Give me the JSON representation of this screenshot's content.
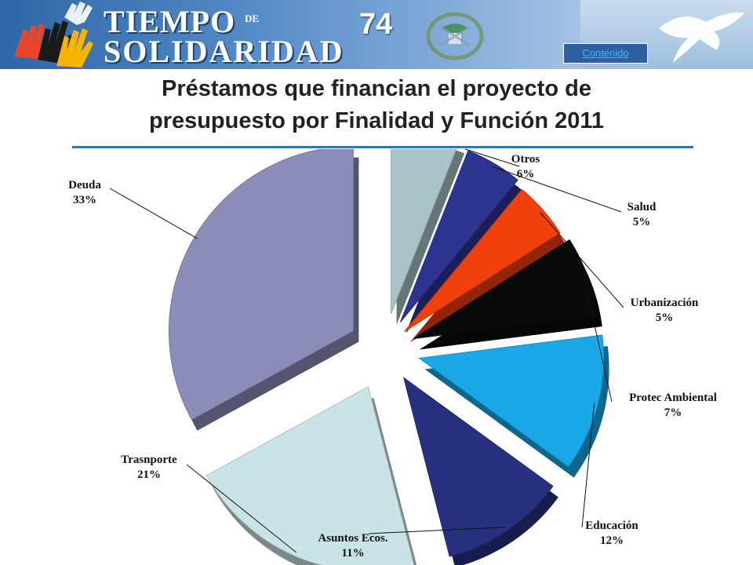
{
  "header": {
    "logo_line1": "TIEMPO",
    "logo_de": "DE",
    "logo_line2": "SOLIDARIDAD",
    "slide_number": "74",
    "nav_link": "Contenido"
  },
  "title": {
    "line1": "Préstamos que financian el proyecto de",
    "line2": "presupuesto por Finalidad y Función 2011"
  },
  "chart_data": {
    "type": "pie",
    "title": "Préstamos que financian el proyecto de presupuesto por Finalidad y Función 2011",
    "value_unit": "%",
    "exploded": true,
    "style": "3d",
    "slices": [
      {
        "label": "Otros",
        "value": 6,
        "display": "6%",
        "color": "#a9c3c8"
      },
      {
        "label": "Salud",
        "value": 5,
        "display": "5%",
        "color": "#2e3491"
      },
      {
        "label": "Urbanización",
        "value": 5,
        "display": "5%",
        "color": "#f0400b"
      },
      {
        "label": "Protec Ambiental",
        "value": 7,
        "display": "7%",
        "color": "#0a0a0a"
      },
      {
        "label": "Educación",
        "value": 12,
        "display": "12%",
        "color": "#1aa8e8"
      },
      {
        "label": "Asuntos Ecos.",
        "value": 11,
        "display": "11%",
        "color": "#27307e"
      },
      {
        "label": "Trasnporte",
        "value": 21,
        "display": "21%",
        "color": "#c9e3e7"
      },
      {
        "label": "Deuda",
        "value": 33,
        "display": "33%",
        "color": "#8c8cb8"
      }
    ]
  }
}
